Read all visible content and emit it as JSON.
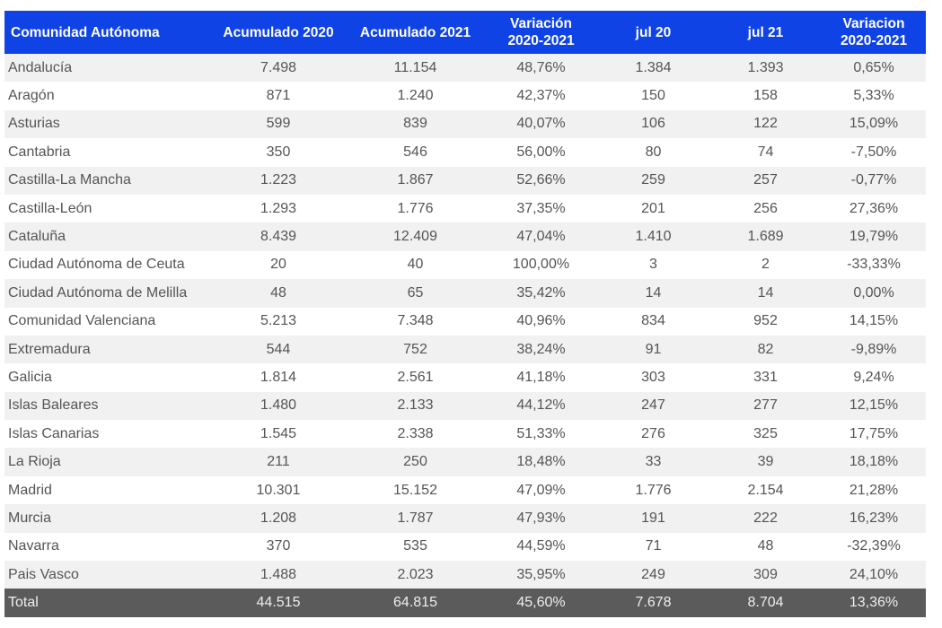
{
  "table": {
    "header": [
      [
        "Comunidad Autónoma"
      ],
      [
        "Acumulado 2020"
      ],
      [
        "Acumulado 2021"
      ],
      [
        "Variación",
        "2020-2021"
      ],
      [
        "jul 20"
      ],
      [
        "jul 21"
      ],
      [
        "Variacion",
        "2020-2021"
      ]
    ],
    "rows": [
      [
        "Andalucía",
        "7.498",
        "11.154",
        "48,76%",
        "1.384",
        "1.393",
        "0,65%"
      ],
      [
        "Aragón",
        "871",
        "1.240",
        "42,37%",
        "150",
        "158",
        "5,33%"
      ],
      [
        "Asturias",
        "599",
        "839",
        "40,07%",
        "106",
        "122",
        "15,09%"
      ],
      [
        "Cantabria",
        "350",
        "546",
        "56,00%",
        "80",
        "74",
        "-7,50%"
      ],
      [
        "Castilla-La Mancha",
        "1.223",
        "1.867",
        "52,66%",
        "259",
        "257",
        "-0,77%"
      ],
      [
        "Castilla-León",
        "1.293",
        "1.776",
        "37,35%",
        "201",
        "256",
        "27,36%"
      ],
      [
        "Cataluña",
        "8.439",
        "12.409",
        "47,04%",
        "1.410",
        "1.689",
        "19,79%"
      ],
      [
        "Ciudad Autónoma de Ceuta",
        "20",
        "40",
        "100,00%",
        "3",
        "2",
        "-33,33%"
      ],
      [
        "Ciudad Autónoma de Melilla",
        "48",
        "65",
        "35,42%",
        "14",
        "14",
        "0,00%"
      ],
      [
        "Comunidad Valenciana",
        "5.213",
        "7.348",
        "40,96%",
        "834",
        "952",
        "14,15%"
      ],
      [
        "Extremadura",
        "544",
        "752",
        "38,24%",
        "91",
        "82",
        "-9,89%"
      ],
      [
        "Galicia",
        "1.814",
        "2.561",
        "41,18%",
        "303",
        "331",
        "9,24%"
      ],
      [
        "Islas Baleares",
        "1.480",
        "2.133",
        "44,12%",
        "247",
        "277",
        "12,15%"
      ],
      [
        "Islas Canarias",
        "1.545",
        "2.338",
        "51,33%",
        "276",
        "325",
        "17,75%"
      ],
      [
        "La Rioja",
        "211",
        "250",
        "18,48%",
        "33",
        "39",
        "18,18%"
      ],
      [
        "Madrid",
        "10.301",
        "15.152",
        "47,09%",
        "1.776",
        "2.154",
        "21,28%"
      ],
      [
        "Murcia",
        "1.208",
        "1.787",
        "47,93%",
        "191",
        "222",
        "16,23%"
      ],
      [
        "Navarra",
        "370",
        "535",
        "44,59%",
        "71",
        "48",
        "-32,39%"
      ],
      [
        "Pais Vasco",
        "1.488",
        "2.023",
        "35,95%",
        "249",
        "309",
        "24,10%"
      ]
    ],
    "total": [
      "Total",
      "44.515",
      "64.815",
      "45,60%",
      "7.678",
      "8.704",
      "13,36%"
    ]
  }
}
